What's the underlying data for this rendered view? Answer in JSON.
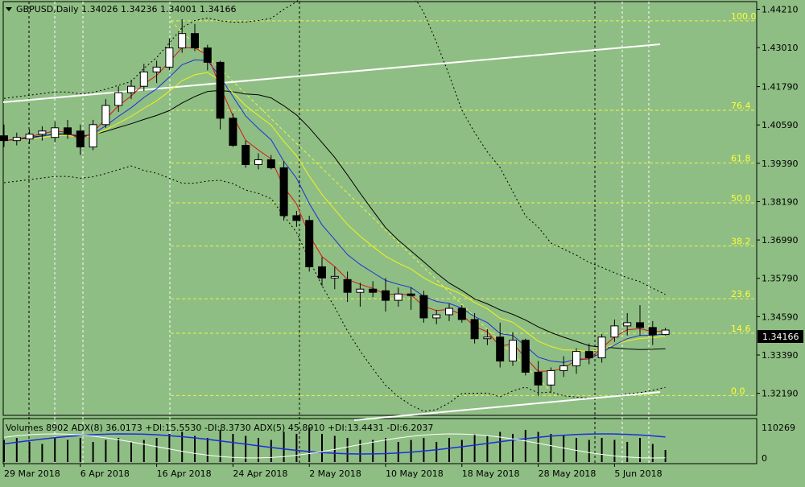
{
  "header": {
    "symbol_line": "GBPUSD,Daily  1.34026 1.34236 1.34001 1.34166"
  },
  "indicator": {
    "label": "Volumes 8902  ADX(8) 36.0173 +DI:15.5530 -DI:8.3730  ADX(5) 45.8910 +DI:13.4431 -DI:6.2037",
    "axis_top": "110269",
    "axis_bottom": "0"
  },
  "colors": {
    "background": "#8fbe84",
    "bull_candle": "#ffffff",
    "bear_candle": "#000000",
    "ema_fast": "#e01010",
    "ema_mid": "#1a2fd8",
    "ema_slow": "#f2f21a",
    "ma_long": "#000000",
    "fib_lines": "#e8f54a",
    "trend_lines": "#ffffff",
    "adx_main": "#1a2fd8",
    "adx_second": "#ffffff"
  },
  "chart_data": {
    "type": "candlestick",
    "y_ticks": [
      "1.44210",
      "1.43010",
      "1.41790",
      "1.40590",
      "1.39390",
      "1.38190",
      "1.36990",
      "1.35790",
      "1.34590",
      "1.33390",
      "1.32190"
    ],
    "ylim": [
      1.315,
      1.4445
    ],
    "x_ticks": [
      {
        "label": "29 Mar 2018",
        "i": 0
      },
      {
        "label": "6 Apr 2018",
        "i": 6
      },
      {
        "label": "16 Apr 2018",
        "i": 12
      },
      {
        "label": "24 Apr 2018",
        "i": 18
      },
      {
        "label": "2 May 2018",
        "i": 24
      },
      {
        "label": "10 May 2018",
        "i": 30
      },
      {
        "label": "18 May 2018",
        "i": 36
      },
      {
        "label": "28 May 2018",
        "i": 42
      },
      {
        "label": "5 Jun 2018",
        "i": 48
      }
    ],
    "current_price": "1.34166",
    "fibonacci": [
      {
        "level": "100.0",
        "price": 1.4385
      },
      {
        "level": "76.4",
        "price": 1.4105
      },
      {
        "level": "61.8",
        "price": 1.394
      },
      {
        "level": "50.0",
        "price": 1.3815
      },
      {
        "level": "38.2",
        "price": 1.368
      },
      {
        "level": "23.6",
        "price": 1.3515
      },
      {
        "level": "14.6",
        "price": 1.3407
      },
      {
        "level": "0.0",
        "price": 1.3212
      }
    ],
    "candles": [
      [
        1.4025,
        1.406,
        1.399,
        1.401
      ],
      [
        1.401,
        1.4035,
        1.3995,
        1.402
      ],
      [
        1.4015,
        1.4045,
        1.4,
        1.403
      ],
      [
        1.403,
        1.4055,
        1.401,
        1.404
      ],
      [
        1.402,
        1.407,
        1.4005,
        1.405
      ],
      [
        1.405,
        1.4075,
        1.4015,
        1.403
      ],
      [
        1.404,
        1.406,
        1.3965,
        1.399
      ],
      [
        1.399,
        1.4075,
        1.398,
        1.406
      ],
      [
        1.406,
        1.414,
        1.405,
        1.412
      ],
      [
        1.412,
        1.418,
        1.41,
        1.416
      ],
      [
        1.416,
        1.42,
        1.414,
        1.418
      ],
      [
        1.418,
        1.425,
        1.4165,
        1.4225
      ],
      [
        1.4225,
        1.426,
        1.419,
        1.424
      ],
      [
        1.424,
        1.433,
        1.423,
        1.43
      ],
      [
        1.43,
        1.439,
        1.4285,
        1.4345
      ],
      [
        1.4345,
        1.4375,
        1.429,
        1.43
      ],
      [
        1.43,
        1.431,
        1.423,
        1.4255
      ],
      [
        1.4255,
        1.426,
        1.4045,
        1.408
      ],
      [
        1.408,
        1.4095,
        1.399,
        1.3995
      ],
      [
        1.3995,
        1.401,
        1.3925,
        1.3935
      ],
      [
        1.3935,
        1.397,
        1.392,
        1.395
      ],
      [
        1.395,
        1.3965,
        1.392,
        1.3925
      ],
      [
        1.3925,
        1.3945,
        1.376,
        1.3775
      ],
      [
        1.3775,
        1.379,
        1.374,
        1.376
      ],
      [
        1.376,
        1.3775,
        1.36,
        1.3615
      ],
      [
        1.3615,
        1.3645,
        1.3555,
        1.358
      ],
      [
        1.358,
        1.3615,
        1.3545,
        1.3585
      ],
      [
        1.3575,
        1.36,
        1.3505,
        1.3535
      ],
      [
        1.3535,
        1.3565,
        1.349,
        1.3545
      ],
      [
        1.3545,
        1.357,
        1.352,
        1.3535
      ],
      [
        1.354,
        1.358,
        1.3475,
        1.351
      ],
      [
        1.351,
        1.355,
        1.349,
        1.353
      ],
      [
        1.353,
        1.355,
        1.348,
        1.3525
      ],
      [
        1.3525,
        1.354,
        1.344,
        1.3455
      ],
      [
        1.3455,
        1.348,
        1.3435,
        1.3465
      ],
      [
        1.3465,
        1.35,
        1.3445,
        1.3485
      ],
      [
        1.3485,
        1.3495,
        1.344,
        1.345
      ],
      [
        1.345,
        1.347,
        1.3375,
        1.339
      ],
      [
        1.339,
        1.342,
        1.337,
        1.3395
      ],
      [
        1.3395,
        1.344,
        1.33,
        1.332
      ],
      [
        1.332,
        1.341,
        1.3305,
        1.3385
      ],
      [
        1.3385,
        1.339,
        1.3275,
        1.3285
      ],
      [
        1.3285,
        1.332,
        1.321,
        1.3245
      ],
      [
        1.3245,
        1.33,
        1.322,
        1.329
      ],
      [
        1.329,
        1.3335,
        1.327,
        1.3305
      ],
      [
        1.3305,
        1.336,
        1.328,
        1.335
      ],
      [
        1.335,
        1.3375,
        1.331,
        1.333
      ],
      [
        1.333,
        1.3405,
        1.3315,
        1.3395
      ],
      [
        1.3395,
        1.345,
        1.338,
        1.343
      ],
      [
        1.343,
        1.347,
        1.34,
        1.344
      ],
      [
        1.344,
        1.3495,
        1.34,
        1.3425
      ],
      [
        1.3425,
        1.3445,
        1.337,
        1.3402
      ],
      [
        1.3403,
        1.3424,
        1.34,
        1.3417
      ]
    ],
    "volumes": [
      0.55,
      0.6,
      0.5,
      0.45,
      0.6,
      0.55,
      0.6,
      0.5,
      0.55,
      0.6,
      0.5,
      0.55,
      0.6,
      0.7,
      0.75,
      0.65,
      0.6,
      0.8,
      0.7,
      0.65,
      0.6,
      0.55,
      0.75,
      0.7,
      0.85,
      0.7,
      0.65,
      0.6,
      0.55,
      0.55,
      0.6,
      0.5,
      0.55,
      0.6,
      0.5,
      0.6,
      0.55,
      0.7,
      0.65,
      0.75,
      0.7,
      0.8,
      0.75,
      0.7,
      0.65,
      0.6,
      0.55,
      0.6,
      0.55,
      0.5,
      0.6,
      0.45,
      0.3
    ]
  }
}
